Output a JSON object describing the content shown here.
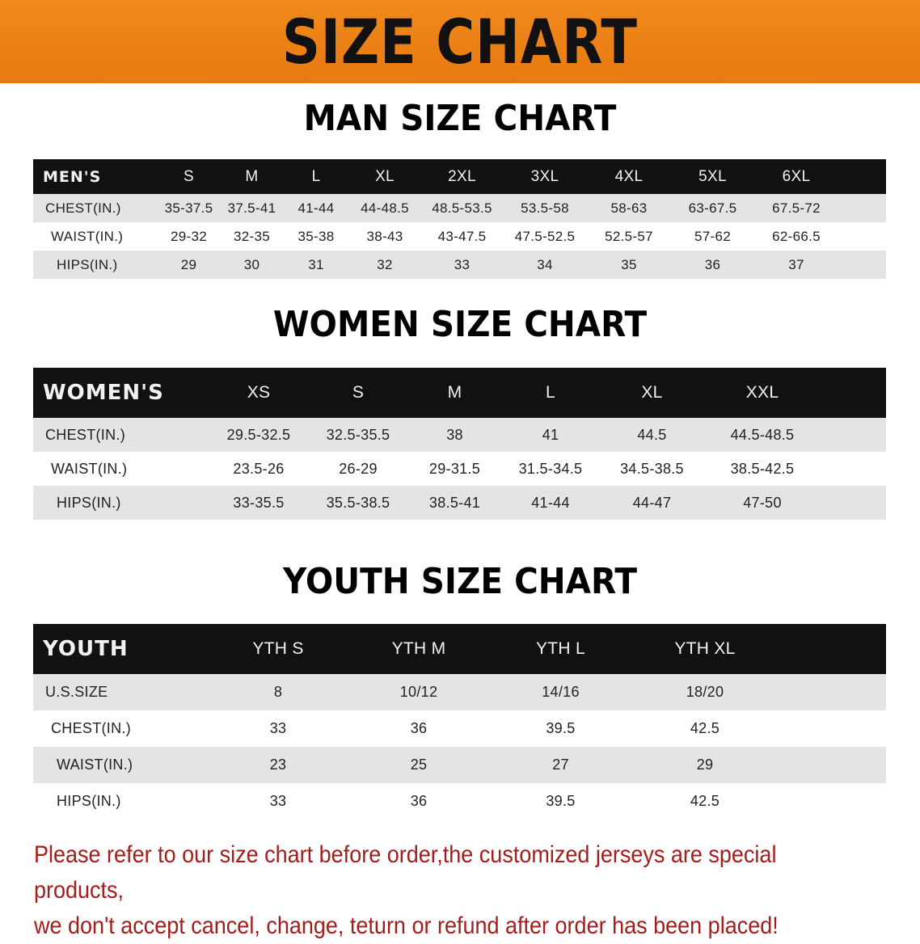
{
  "banner_title": "SIZE CHART",
  "men": {
    "title": "MAN SIZE CHART",
    "header": [
      "MEN'S",
      "S",
      "M",
      "L",
      "XL",
      "2XL",
      "3XL",
      "4XL",
      "5XL",
      "6XL"
    ],
    "rows": [
      [
        "CHEST(IN.)",
        "35-37.5",
        "37.5-41",
        "41-44",
        "44-48.5",
        "48.5-53.5",
        "53.5-58",
        "58-63",
        "63-67.5",
        "67.5-72"
      ],
      [
        "WAIST(IN.)",
        "29-32",
        "32-35",
        "35-38",
        "38-43",
        "43-47.5",
        "47.5-52.5",
        "52.5-57",
        "57-62",
        "62-66.5"
      ],
      [
        "HIPS(IN.)",
        "29",
        "30",
        "31",
        "32",
        "33",
        "34",
        "35",
        "36",
        "37"
      ]
    ]
  },
  "women": {
    "title": "WOMEN SIZE CHART",
    "header": [
      "WOMEN'S",
      "XS",
      "S",
      "M",
      "L",
      "XL",
      "XXL"
    ],
    "rows": [
      [
        "CHEST(IN.)",
        "29.5-32.5",
        "32.5-35.5",
        "38",
        "41",
        "44.5",
        "44.5-48.5"
      ],
      [
        "WAIST(IN.)",
        "23.5-26",
        "26-29",
        "29-31.5",
        "31.5-34.5",
        "34.5-38.5",
        "38.5-42.5"
      ],
      [
        "HIPS(IN.)",
        "33-35.5",
        "35.5-38.5",
        "38.5-41",
        "41-44",
        "44-47",
        "47-50"
      ]
    ]
  },
  "youth": {
    "title": "YOUTH SIZE CHART",
    "header": [
      "YOUTH",
      "YTH S",
      "YTH M",
      "YTH L",
      "YTH XL"
    ],
    "rows": [
      [
        "U.S.SIZE",
        "8",
        "10/12",
        "14/16",
        "18/20"
      ],
      [
        "CHEST(IN.)",
        "33",
        "36",
        "39.5",
        "42.5"
      ],
      [
        "WAIST(IN.)",
        "23",
        "25",
        "27",
        "29"
      ],
      [
        "HIPS(IN.)",
        "33",
        "36",
        "39.5",
        "42.5"
      ]
    ]
  },
  "note": {
    "line1": "Please refer to our size chart before order,the customized jerseys are special products,",
    "line2": "we don't accept cancel, change, teturn or refund after order has been placed!"
  },
  "colors": {
    "banner": "#e87a12",
    "header_row": "#111111",
    "shaded_row": "#e4e4e4",
    "note_text": "#a51c1c"
  }
}
